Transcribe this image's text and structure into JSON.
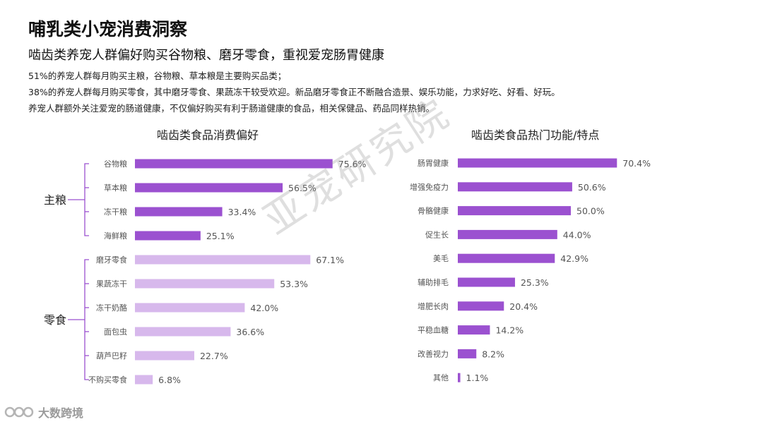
{
  "header": {
    "title": "哺乳类小宠消费洞察",
    "subtitle": "啮齿类养宠人群偏好购买谷物粮、磨牙零食，重视爱宠肠胃健康",
    "lines": [
      "51%的养宠人群每月购买主粮，谷物粮、草本粮是主要购买品类；",
      "38%的养宠人群每月购买零食，其中磨牙零食、果蔬冻干较受欢迎。新品磨牙零食正不断融合造景、娱乐功能，力求好吃、好看、好玩。",
      "养宠人群额外关注爱宠的肠道健康，不仅偏好购买有利于肠道健康的食品，相关保健品、药品同样热销。"
    ]
  },
  "watermark": "亚宠研究院",
  "footer": {
    "logo_text": "大数跨境"
  },
  "colors": {
    "dark_bar": "#9b51d0",
    "light_bar": "#d7b8ec",
    "bracket": "#9b51d0",
    "label_text": "#555555"
  },
  "chart_data": [
    {
      "type": "bar",
      "orientation": "horizontal",
      "title": "啮齿类食品消费偏好",
      "groups": [
        {
          "name": "主粮",
          "categories": [
            "谷物粮",
            "草本粮",
            "冻干粮",
            "海鲜粮"
          ],
          "values": [
            75.6,
            56.5,
            33.4,
            25.1
          ],
          "labels": [
            "75.6%",
            "56.5%",
            "33.4%",
            "25.1%"
          ],
          "color": "#9b51d0"
        },
        {
          "name": "零食",
          "categories": [
            "磨牙零食",
            "果蔬冻干",
            "冻干奶酪",
            "面包虫",
            "葫芦巴籽",
            "不购买零食"
          ],
          "values": [
            67.1,
            53.3,
            42.0,
            36.6,
            22.7,
            6.8
          ],
          "labels": [
            "67.1%",
            "53.3%",
            "42.0%",
            "36.6%",
            "22.7%",
            "6.8%"
          ],
          "color": "#d7b8ec"
        }
      ],
      "unit": "%",
      "xlim": [
        0,
        80
      ],
      "grid": false,
      "legend": "none"
    },
    {
      "type": "bar",
      "orientation": "horizontal",
      "title": "啮齿类食品热门功能/特点",
      "categories": [
        "肠胃健康",
        "增强免疫力",
        "骨骼健康",
        "促生长",
        "美毛",
        "辅助排毛",
        "增肥长肉",
        "平稳血糖",
        "改善视力",
        "其他"
      ],
      "values": [
        70.4,
        50.6,
        50.0,
        44.0,
        42.9,
        25.3,
        20.4,
        14.2,
        8.2,
        1.1
      ],
      "labels": [
        "70.4%",
        "50.6%",
        "50.0%",
        "44.0%",
        "42.9%",
        "25.3%",
        "20.4%",
        "14.2%",
        "8.2%",
        "1.1%"
      ],
      "color": "#9b51d0",
      "unit": "%",
      "xlim": [
        0,
        80
      ],
      "grid": false,
      "legend": "none"
    }
  ]
}
